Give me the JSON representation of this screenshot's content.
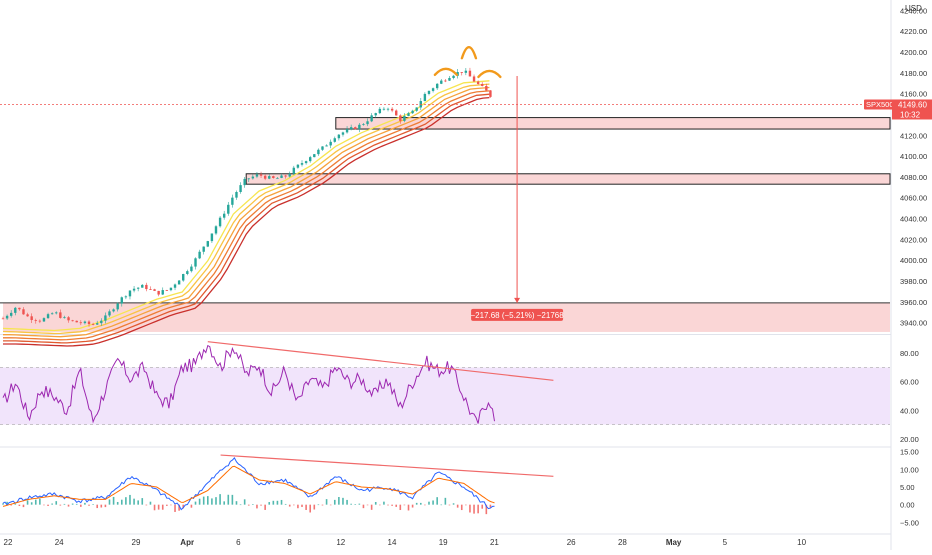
{
  "chart_data": {
    "type": "line",
    "currency": "USD",
    "symbol_label": "SPX500",
    "last_price": "4149.60",
    "countdown": "10:32",
    "measure_label": "−217.68 (−5.21%) −21768",
    "price_axis": {
      "ticks": [
        3940,
        3960,
        3980,
        4000,
        4020,
        4040,
        4060,
        4080,
        4100,
        4120,
        4140,
        4160,
        4180,
        4200,
        4220,
        4240
      ],
      "tick_labels": [
        "3940.00",
        "3960.00",
        "3980.00",
        "4000.00",
        "4020.00",
        "4040.00",
        "4060.00",
        "4080.00",
        "4100.00",
        "4120.00",
        "4140.00",
        "4160.00",
        "4180.00",
        "4200.00",
        "4220.00",
        "4240.00"
      ],
      "range": [
        3930,
        4250
      ]
    },
    "rsi_axis": {
      "ticks": [
        20,
        40,
        60,
        80
      ],
      "tick_labels": [
        "20.00",
        "40.00",
        "60.00",
        "80.00"
      ],
      "range": [
        15,
        92
      ],
      "band": [
        30,
        70
      ]
    },
    "macd_axis": {
      "ticks": [
        -5,
        0,
        5,
        10,
        15
      ],
      "tick_labels": [
        "−5.00",
        "0.00",
        "5.00",
        "10.00",
        "15.00"
      ],
      "range": [
        -8,
        16
      ]
    },
    "x_labels": [
      "22",
      "24",
      "29",
      "Apr",
      "6",
      "8",
      "12",
      "14",
      "19",
      "21",
      "26",
      "28",
      "May",
      "5",
      "10"
    ],
    "x_index": [
      0,
      2,
      5,
      7,
      9,
      11,
      13,
      15,
      17,
      19,
      22,
      24,
      26,
      28,
      31
    ],
    "price_series": [
      {
        "i": 0,
        "p": 3944
      },
      {
        "i": 0.5,
        "p": 3955
      },
      {
        "i": 1,
        "p": 3945
      },
      {
        "i": 1.5,
        "p": 3942
      },
      {
        "i": 2,
        "p": 3950
      },
      {
        "i": 2.5,
        "p": 3942
      },
      {
        "i": 3,
        "p": 3940
      },
      {
        "i": 3.5,
        "p": 3938
      },
      {
        "i": 4,
        "p": 3945
      },
      {
        "i": 4.5,
        "p": 3960
      },
      {
        "i": 5,
        "p": 3972
      },
      {
        "i": 5.5,
        "p": 3975
      },
      {
        "i": 6,
        "p": 3968
      },
      {
        "i": 6.5,
        "p": 3972
      },
      {
        "i": 7,
        "p": 3985
      },
      {
        "i": 7.5,
        "p": 4000
      },
      {
        "i": 8,
        "p": 4020
      },
      {
        "i": 8.5,
        "p": 4040
      },
      {
        "i": 9,
        "p": 4062
      },
      {
        "i": 9.5,
        "p": 4078
      },
      {
        "i": 10,
        "p": 4082
      },
      {
        "i": 10.5,
        "p": 4078
      },
      {
        "i": 11,
        "p": 4080
      },
      {
        "i": 11.5,
        "p": 4090
      },
      {
        "i": 12,
        "p": 4100
      },
      {
        "i": 12.5,
        "p": 4108
      },
      {
        "i": 13,
        "p": 4120
      },
      {
        "i": 13.5,
        "p": 4125
      },
      {
        "i": 14,
        "p": 4130
      },
      {
        "i": 14.5,
        "p": 4140
      },
      {
        "i": 15,
        "p": 4148
      },
      {
        "i": 15.5,
        "p": 4135
      },
      {
        "i": 16,
        "p": 4142
      },
      {
        "i": 16.5,
        "p": 4160
      },
      {
        "i": 17,
        "p": 4170
      },
      {
        "i": 17.5,
        "p": 4178
      },
      {
        "i": 18,
        "p": 4182
      },
      {
        "i": 18.5,
        "p": 4170
      },
      {
        "i": 19,
        "p": 4160
      },
      {
        "i": 19.2,
        "p": 4149.6
      }
    ],
    "ema_ribbon": [
      {
        "i": 0,
        "p": 3930
      },
      {
        "i": 2,
        "p": 3928
      },
      {
        "i": 3,
        "p": 3930
      },
      {
        "i": 4,
        "p": 3938
      },
      {
        "i": 5,
        "p": 3948
      },
      {
        "i": 6,
        "p": 3958
      },
      {
        "i": 7,
        "p": 3965
      },
      {
        "i": 8,
        "p": 3995
      },
      {
        "i": 9,
        "p": 4040
      },
      {
        "i": 10,
        "p": 4062
      },
      {
        "i": 11,
        "p": 4072
      },
      {
        "i": 12,
        "p": 4086
      },
      {
        "i": 13,
        "p": 4105
      },
      {
        "i": 14,
        "p": 4118
      },
      {
        "i": 15,
        "p": 4128
      },
      {
        "i": 16,
        "p": 4138
      },
      {
        "i": 17,
        "p": 4156
      },
      {
        "i": 18,
        "p": 4166
      },
      {
        "i": 19,
        "p": 4168
      }
    ],
    "zones": [
      {
        "p_top": 4137,
        "p_bottom": 4126,
        "i_start": 13
      },
      {
        "p_top": 4083,
        "p_bottom": 4073,
        "i_start": 9.5
      },
      {
        "p_top": 3959,
        "p_bottom": 3931,
        "i_start": 0
      }
    ],
    "measure": {
      "i": 19.3,
      "p_from": 4177,
      "p_to": 3959
    },
    "rsi_series": [
      {
        "i": 0,
        "v": 45
      },
      {
        "i": 0.5,
        "v": 60
      },
      {
        "i": 1,
        "v": 35
      },
      {
        "i": 1.5,
        "v": 55
      },
      {
        "i": 2,
        "v": 50
      },
      {
        "i": 2.5,
        "v": 40
      },
      {
        "i": 3,
        "v": 68
      },
      {
        "i": 3.5,
        "v": 32
      },
      {
        "i": 4,
        "v": 55
      },
      {
        "i": 4.5,
        "v": 75
      },
      {
        "i": 5,
        "v": 62
      },
      {
        "i": 5.5,
        "v": 70
      },
      {
        "i": 6,
        "v": 50
      },
      {
        "i": 6.5,
        "v": 44
      },
      {
        "i": 7,
        "v": 70
      },
      {
        "i": 7.5,
        "v": 72
      },
      {
        "i": 8,
        "v": 88
      },
      {
        "i": 8.5,
        "v": 70
      },
      {
        "i": 9,
        "v": 86
      },
      {
        "i": 9.5,
        "v": 65
      },
      {
        "i": 10,
        "v": 72
      },
      {
        "i": 10.5,
        "v": 52
      },
      {
        "i": 11,
        "v": 68
      },
      {
        "i": 11.5,
        "v": 45
      },
      {
        "i": 12,
        "v": 62
      },
      {
        "i": 12.5,
        "v": 55
      },
      {
        "i": 13,
        "v": 70
      },
      {
        "i": 13.5,
        "v": 60
      },
      {
        "i": 14,
        "v": 62
      },
      {
        "i": 14.5,
        "v": 50
      },
      {
        "i": 15,
        "v": 62
      },
      {
        "i": 15.5,
        "v": 42
      },
      {
        "i": 16,
        "v": 60
      },
      {
        "i": 16.5,
        "v": 74
      },
      {
        "i": 17,
        "v": 68
      },
      {
        "i": 17.5,
        "v": 70
      },
      {
        "i": 18,
        "v": 50
      },
      {
        "i": 18.5,
        "v": 30
      },
      {
        "i": 19,
        "v": 50
      },
      {
        "i": 19.2,
        "v": 32
      }
    ],
    "rsi_trend": {
      "i_from": 8,
      "v_from": 88,
      "i_to": 21.5,
      "v_to": 61
    },
    "macd_line": [
      {
        "i": 0,
        "v": 0
      },
      {
        "i": 1,
        "v": 2
      },
      {
        "i": 2,
        "v": 3
      },
      {
        "i": 3,
        "v": 1
      },
      {
        "i": 4,
        "v": 2
      },
      {
        "i": 5,
        "v": 8
      },
      {
        "i": 6,
        "v": 4
      },
      {
        "i": 7,
        "v": -1
      },
      {
        "i": 8,
        "v": 6
      },
      {
        "i": 9,
        "v": 13
      },
      {
        "i": 10,
        "v": 6
      },
      {
        "i": 11,
        "v": 7
      },
      {
        "i": 12,
        "v": 2
      },
      {
        "i": 13,
        "v": 8
      },
      {
        "i": 14,
        "v": 4
      },
      {
        "i": 15,
        "v": 5
      },
      {
        "i": 16,
        "v": 2
      },
      {
        "i": 17,
        "v": 9
      },
      {
        "i": 18,
        "v": 5
      },
      {
        "i": 19,
        "v": -1
      },
      {
        "i": 19.2,
        "v": 0
      }
    ],
    "signal_line": [
      {
        "i": 0,
        "v": -0.5
      },
      {
        "i": 1,
        "v": 1.5
      },
      {
        "i": 2,
        "v": 2.5
      },
      {
        "i": 3,
        "v": 1.5
      },
      {
        "i": 4,
        "v": 1.5
      },
      {
        "i": 5,
        "v": 6
      },
      {
        "i": 6,
        "v": 5
      },
      {
        "i": 7,
        "v": 0.5
      },
      {
        "i": 8,
        "v": 4
      },
      {
        "i": 9,
        "v": 11
      },
      {
        "i": 10,
        "v": 7
      },
      {
        "i": 11,
        "v": 6
      },
      {
        "i": 12,
        "v": 3
      },
      {
        "i": 13,
        "v": 6.5
      },
      {
        "i": 14,
        "v": 5
      },
      {
        "i": 15,
        "v": 4.5
      },
      {
        "i": 16,
        "v": 3
      },
      {
        "i": 17,
        "v": 7.5
      },
      {
        "i": 18,
        "v": 6
      },
      {
        "i": 19,
        "v": 1
      },
      {
        "i": 19.2,
        "v": 0.5
      }
    ],
    "macd_trend": {
      "i_from": 8.5,
      "v_from": 14,
      "i_to": 21.5,
      "v_to": 8
    },
    "colors": {
      "candle_up": "#26a69a",
      "candle_down": "#ef5350",
      "zone_fill": "#f8c8c8",
      "rsi_line": "#9c27b0",
      "rsi_band": "#f1e4fb",
      "macd_line": "#2962ff",
      "signal_line": "#ff6d00",
      "trend_line": "#f06a6a",
      "hs_marker": "#f29a1c",
      "ribbon": [
        "#f7e54f",
        "#f9c343",
        "#f6a13b",
        "#ee7c34",
        "#e15a2f",
        "#c9302c"
      ]
    }
  }
}
